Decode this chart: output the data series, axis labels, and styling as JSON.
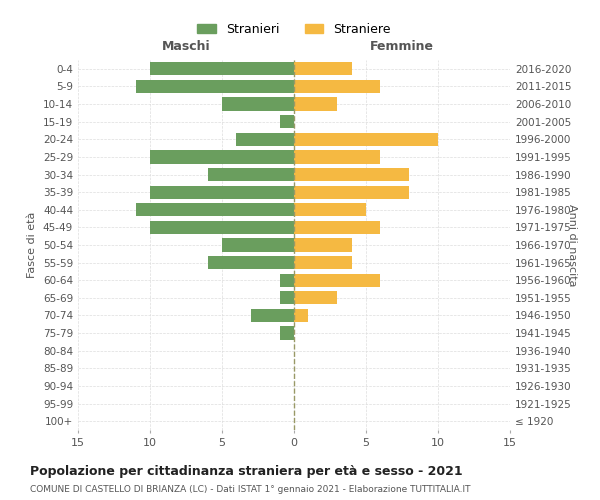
{
  "age_groups": [
    "100+",
    "95-99",
    "90-94",
    "85-89",
    "80-84",
    "75-79",
    "70-74",
    "65-69",
    "60-64",
    "55-59",
    "50-54",
    "45-49",
    "40-44",
    "35-39",
    "30-34",
    "25-29",
    "20-24",
    "15-19",
    "10-14",
    "5-9",
    "0-4"
  ],
  "birth_years": [
    "≤ 1920",
    "1921-1925",
    "1926-1930",
    "1931-1935",
    "1936-1940",
    "1941-1945",
    "1946-1950",
    "1951-1955",
    "1956-1960",
    "1961-1965",
    "1966-1970",
    "1971-1975",
    "1976-1980",
    "1981-1985",
    "1986-1990",
    "1991-1995",
    "1996-2000",
    "2001-2005",
    "2006-2010",
    "2011-2015",
    "2016-2020"
  ],
  "males": [
    0,
    0,
    0,
    0,
    0,
    1,
    3,
    1,
    1,
    6,
    5,
    10,
    11,
    10,
    6,
    10,
    4,
    1,
    5,
    11,
    10
  ],
  "females": [
    0,
    0,
    0,
    0,
    0,
    0,
    1,
    3,
    6,
    4,
    4,
    6,
    5,
    8,
    8,
    6,
    10,
    0,
    3,
    6,
    4
  ],
  "male_color": "#6a9e5e",
  "female_color": "#f5b942",
  "title": "Popolazione per cittadinanza straniera per età e sesso - 2021",
  "subtitle": "COMUNE DI CASTELLO DI BRIANZA (LC) - Dati ISTAT 1° gennaio 2021 - Elaborazione TUTTITALIA.IT",
  "xlabel_left": "Maschi",
  "xlabel_right": "Femmine",
  "ylabel_left": "Fasce di età",
  "ylabel_right": "Anni di nascita",
  "legend_male": "Stranieri",
  "legend_female": "Straniere",
  "xlim": 15,
  "background_color": "#ffffff",
  "grid_color": "#dddddd"
}
